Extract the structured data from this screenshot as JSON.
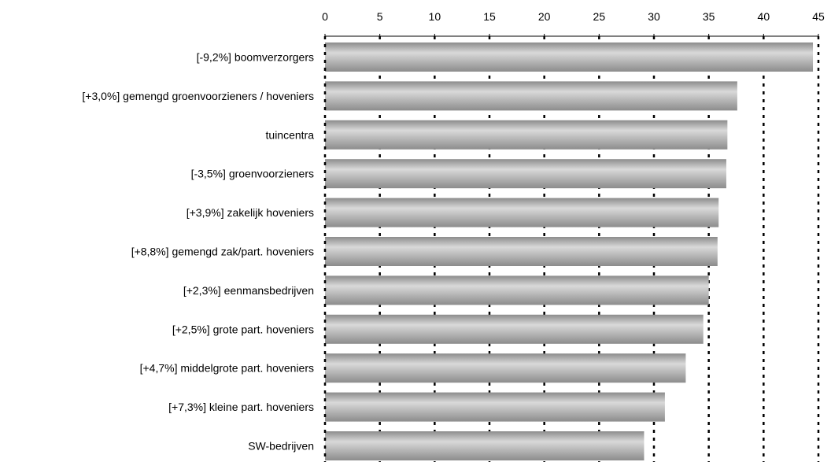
{
  "chart_data": {
    "type": "bar",
    "orientation": "horizontal",
    "categories": [
      "[-9,2%] boomverzorgers",
      "[+3,0%] gemengd groenvoorzieners / hoveniers",
      "tuincentra",
      "[-3,5%] groenvoorzieners",
      "[+3,9%] zakelijk hoveniers",
      "[+8,8%] gemengd zak/part. hoveniers",
      "[+2,3%] eenmansbedrijven",
      "[+2,5%] grote part. hoveniers",
      "[+4,7%] middelgrote part. hoveniers",
      "[+7,3%] kleine part. hoveniers",
      "SW-bedrijven"
    ],
    "values": [
      44.5,
      37.6,
      36.7,
      36.6,
      35.9,
      35.8,
      35.0,
      34.5,
      32.9,
      31.0,
      29.1
    ],
    "xticks": [
      "0",
      "5",
      "10",
      "15",
      "20",
      "25",
      "30",
      "35",
      "40",
      "45"
    ],
    "xlim": [
      0,
      45
    ],
    "xaxis_position": "top",
    "grid": "vertical dotted",
    "bar_color": "#8c8c8c",
    "bar_highlight_color": "#d9d9d9",
    "grid_color": "#000000"
  }
}
